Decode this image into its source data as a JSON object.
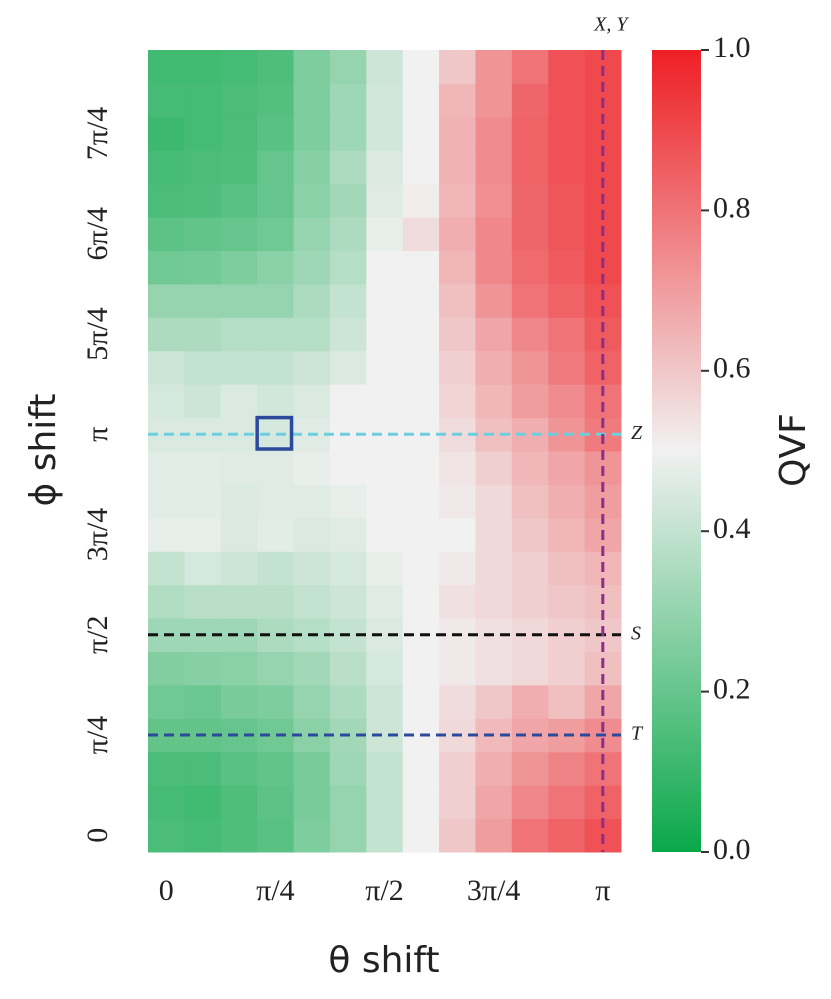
{
  "chart_data": {
    "type": "heatmap",
    "x_label": "θ shift",
    "y_label": "ϕ shift",
    "colorbar_label": "QVF",
    "x_categories": [
      "0",
      null,
      null,
      "π/4",
      null,
      null,
      "π/2",
      null,
      null,
      "3π/4",
      null,
      null,
      "π"
    ],
    "y_categories": [
      "0",
      null,
      null,
      "π/4",
      null,
      null,
      "π/2",
      null,
      null,
      "3π/4",
      null,
      null,
      "π",
      null,
      null,
      "5π/4",
      null,
      null,
      "6π/4",
      null,
      null,
      "7π/4",
      null,
      null
    ],
    "z": [
      [
        0.14,
        0.13,
        0.15,
        0.17,
        0.25,
        0.3,
        0.4,
        0.5,
        0.6,
        0.7,
        0.8,
        0.84,
        0.88
      ],
      [
        0.13,
        0.12,
        0.15,
        0.18,
        0.24,
        0.3,
        0.4,
        0.5,
        0.58,
        0.68,
        0.75,
        0.8,
        0.84
      ],
      [
        0.14,
        0.14,
        0.17,
        0.19,
        0.24,
        0.32,
        0.4,
        0.5,
        0.58,
        0.66,
        0.72,
        0.76,
        0.8
      ],
      [
        0.19,
        0.19,
        0.2,
        0.22,
        0.28,
        0.33,
        0.42,
        0.5,
        0.56,
        0.63,
        0.68,
        0.7,
        0.74
      ],
      [
        0.22,
        0.21,
        0.24,
        0.25,
        0.3,
        0.35,
        0.42,
        0.5,
        0.55,
        0.6,
        0.66,
        0.62,
        0.68
      ],
      [
        0.26,
        0.27,
        0.28,
        0.3,
        0.33,
        0.38,
        0.44,
        0.5,
        0.52,
        0.54,
        0.56,
        0.58,
        0.62
      ],
      [
        0.32,
        0.32,
        0.32,
        0.35,
        0.37,
        0.4,
        0.45,
        0.5,
        0.52,
        0.54,
        0.56,
        0.58,
        0.6
      ],
      [
        0.36,
        0.38,
        0.38,
        0.38,
        0.4,
        0.42,
        0.46,
        0.5,
        0.54,
        0.56,
        0.58,
        0.6,
        0.62
      ],
      [
        0.4,
        0.44,
        0.42,
        0.4,
        0.42,
        0.44,
        0.48,
        0.5,
        0.52,
        0.56,
        0.58,
        0.62,
        0.64
      ],
      [
        0.48,
        0.48,
        0.45,
        0.47,
        0.45,
        0.46,
        0.5,
        0.5,
        0.5,
        0.56,
        0.6,
        0.64,
        0.68
      ],
      [
        0.47,
        0.47,
        0.45,
        0.46,
        0.46,
        0.48,
        0.5,
        0.5,
        0.52,
        0.56,
        0.62,
        0.66,
        0.7
      ],
      [
        0.47,
        0.47,
        0.46,
        0.46,
        0.48,
        0.5,
        0.5,
        0.5,
        0.53,
        0.58,
        0.64,
        0.68,
        0.72
      ],
      [
        0.45,
        0.45,
        0.45,
        0.44,
        0.46,
        0.5,
        0.5,
        0.5,
        0.55,
        0.62,
        0.66,
        0.72,
        0.78
      ],
      [
        0.44,
        0.42,
        0.45,
        0.43,
        0.45,
        0.5,
        0.5,
        0.5,
        0.57,
        0.64,
        0.7,
        0.74,
        0.8
      ],
      [
        0.42,
        0.4,
        0.4,
        0.4,
        0.42,
        0.45,
        0.5,
        0.5,
        0.58,
        0.66,
        0.72,
        0.78,
        0.84
      ],
      [
        0.35,
        0.35,
        0.37,
        0.37,
        0.37,
        0.42,
        0.5,
        0.5,
        0.6,
        0.68,
        0.75,
        0.8,
        0.86
      ],
      [
        0.3,
        0.3,
        0.3,
        0.3,
        0.35,
        0.4,
        0.5,
        0.5,
        0.62,
        0.72,
        0.8,
        0.84,
        0.88
      ],
      [
        0.22,
        0.23,
        0.25,
        0.28,
        0.32,
        0.37,
        0.5,
        0.5,
        0.64,
        0.75,
        0.82,
        0.86,
        0.9
      ],
      [
        0.18,
        0.19,
        0.2,
        0.22,
        0.3,
        0.35,
        0.48,
        0.55,
        0.66,
        0.75,
        0.83,
        0.87,
        0.9
      ],
      [
        0.14,
        0.15,
        0.17,
        0.2,
        0.28,
        0.33,
        0.46,
        0.51,
        0.64,
        0.73,
        0.83,
        0.87,
        0.9
      ],
      [
        0.13,
        0.14,
        0.15,
        0.2,
        0.27,
        0.35,
        0.45,
        0.5,
        0.65,
        0.74,
        0.84,
        0.88,
        0.9
      ],
      [
        0.11,
        0.13,
        0.14,
        0.17,
        0.25,
        0.32,
        0.43,
        0.5,
        0.65,
        0.74,
        0.84,
        0.88,
        0.9
      ],
      [
        0.13,
        0.13,
        0.14,
        0.16,
        0.25,
        0.32,
        0.43,
        0.5,
        0.64,
        0.72,
        0.83,
        0.88,
        0.9
      ],
      [
        0.12,
        0.12,
        0.13,
        0.15,
        0.25,
        0.3,
        0.42,
        0.5,
        0.6,
        0.72,
        0.8,
        0.88,
        0.9
      ]
    ],
    "colormap": [
      "#0aa84a",
      "#f1f1f1",
      "#ee1f25"
    ],
    "clim": [
      0,
      1
    ],
    "cticks": [
      {
        "value": 0,
        "label": "0.0"
      },
      0.2,
      0.4,
      0.6,
      0.8,
      {
        "value": 1,
        "label": "1.0"
      }
    ],
    "hlines": [
      {
        "row": 12,
        "label": "Z",
        "color": "#6ccfe0"
      },
      {
        "row": 6,
        "label": "S",
        "color": "#111111"
      },
      {
        "row": 3,
        "label": "T",
        "color": "#2b4a9b"
      }
    ],
    "vlines": [
      {
        "col": 12,
        "label": "X, Y",
        "color": "#8b2e8b"
      }
    ],
    "marker": {
      "col": 3,
      "row": 12,
      "color": "#2b4a9b"
    }
  }
}
